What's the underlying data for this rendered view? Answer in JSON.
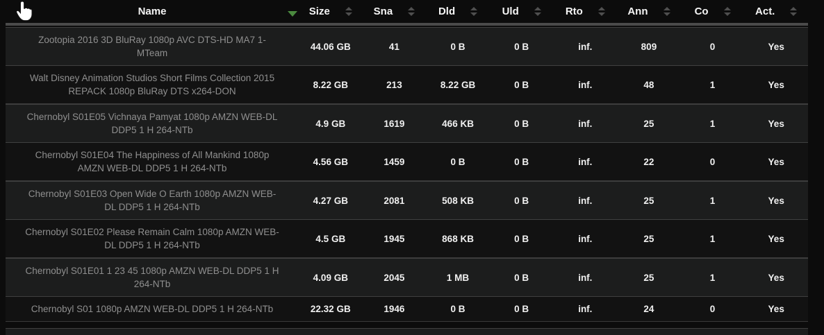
{
  "colors": {
    "sort_active_green": "#4b8a3f",
    "row_light_bg": "#1c1d1d",
    "row_dark_bg": "#121212",
    "value_text": "#f0f0f0",
    "name_text": "#8f8f8f"
  },
  "cursor": {
    "type": "hand-pointer"
  },
  "table": {
    "columns": [
      {
        "key": "name",
        "label": "Name",
        "sorted": "desc"
      },
      {
        "key": "size",
        "label": "Size"
      },
      {
        "key": "sna",
        "label": "Sna"
      },
      {
        "key": "dld",
        "label": "Dld"
      },
      {
        "key": "uld",
        "label": "Uld"
      },
      {
        "key": "rto",
        "label": "Rto"
      },
      {
        "key": "ann",
        "label": "Ann"
      },
      {
        "key": "co",
        "label": "Co"
      },
      {
        "key": "act",
        "label": "Act."
      }
    ],
    "rows": [
      {
        "name": "Zootopia 2016 3D BluRay 1080p AVC DTS-HD MA7 1-MTeam",
        "size": "44.06 GB",
        "sna": "41",
        "dld": "0 B",
        "uld": "0 B",
        "rto": "inf.",
        "ann": "809",
        "co": "0",
        "act": "Yes"
      },
      {
        "name": "Walt Disney Animation Studios Short Films Collection 2015 REPACK 1080p BluRay DTS x264-DON",
        "size": "8.22 GB",
        "sna": "213",
        "dld": "8.22 GB",
        "uld": "0 B",
        "rto": "inf.",
        "ann": "48",
        "co": "1",
        "act": "Yes"
      },
      {
        "name": "Chernobyl S01E05 Vichnaya Pamyat 1080p AMZN WEB-DL DDP5 1 H 264-NTb",
        "size": "4.9 GB",
        "sna": "1619",
        "dld": "466 KB",
        "uld": "0 B",
        "rto": "inf.",
        "ann": "25",
        "co": "1",
        "act": "Yes"
      },
      {
        "name": "Chernobyl S01E04 The Happiness of All Mankind 1080p AMZN WEB-DL DDP5 1 H 264-NTb",
        "size": "4.56 GB",
        "sna": "1459",
        "dld": "0 B",
        "uld": "0 B",
        "rto": "inf.",
        "ann": "22",
        "co": "0",
        "act": "Yes"
      },
      {
        "name": "Chernobyl S01E03 Open Wide O Earth 1080p AMZN WEB-DL DDP5 1 H 264-NTb",
        "size": "4.27 GB",
        "sna": "2081",
        "dld": "508 KB",
        "uld": "0 B",
        "rto": "inf.",
        "ann": "25",
        "co": "1",
        "act": "Yes"
      },
      {
        "name": "Chernobyl S01E02 Please Remain Calm 1080p AMZN WEB-DL DDP5 1 H 264-NTb",
        "size": "4.5 GB",
        "sna": "1945",
        "dld": "868 KB",
        "uld": "0 B",
        "rto": "inf.",
        "ann": "25",
        "co": "1",
        "act": "Yes"
      },
      {
        "name": "Chernobyl S01E01 1 23 45 1080p AMZN WEB-DL DDP5 1 H 264-NTb",
        "size": "4.09 GB",
        "sna": "2045",
        "dld": "1 MB",
        "uld": "0 B",
        "rto": "inf.",
        "ann": "25",
        "co": "1",
        "act": "Yes"
      },
      {
        "name": "Chernobyl S01 1080p AMZN WEB-DL DDP5 1 H 264-NTb",
        "size": "22.32 GB",
        "sna": "1946",
        "dld": "0 B",
        "uld": "0 B",
        "rto": "inf.",
        "ann": "24",
        "co": "0",
        "act": "Yes"
      }
    ]
  }
}
